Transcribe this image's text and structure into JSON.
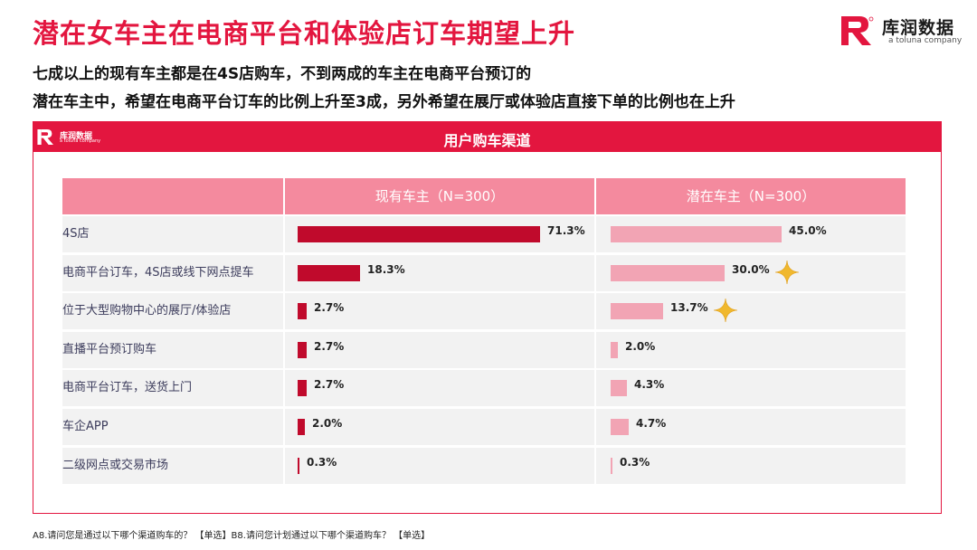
{
  "title": "潜在女车主在电商平台和体验店订车期望上升",
  "subtitle_lines": [
    "七成以上的现有车主都是在4S店购车，不到两成的车主在电商平台预订的",
    "潜在车主中，希望在电商平台订车的比例上升至3成，另外希望在展厅或体验店直接下单的比例也在上升"
  ],
  "brand": {
    "name": "库润数据",
    "sub": "a toluna company",
    "colors": {
      "primary": "#e3163f",
      "bar_current": "#c00a2c",
      "bar_potential": "#f2a4b4",
      "header_pink": "#f48a9e"
    }
  },
  "panel": {
    "title": "用户购车渠道"
  },
  "footnote": "A8.请问您是通过以下哪个渠道购车的？ 【单选】B8.请问您计划通过以下哪个渠道购车？ 【单选】",
  "chart_data": {
    "type": "bar",
    "orientation": "horizontal",
    "title": "用户购车渠道",
    "categories": [
      "4S店",
      "电商平台订车，4S店或线下网点提车",
      "位于大型购物中心的展厅/体验店",
      "直播平台预订购车",
      "电商平台订车，送货上门",
      "车企APP",
      "二级网点或交易市场"
    ],
    "series": [
      {
        "name": "现有车主（N=300）",
        "values": [
          71.3,
          18.3,
          2.7,
          2.7,
          2.7,
          2.0,
          0.3
        ],
        "labels": [
          "71.3%",
          "18.3%",
          "2.7%",
          "2.7%",
          "2.7%",
          "2.0%",
          "0.3%"
        ]
      },
      {
        "name": "潜在车主（N=300）",
        "values": [
          45.0,
          30.0,
          13.7,
          2.0,
          4.3,
          4.7,
          0.3
        ],
        "labels": [
          "45.0%",
          "30.0%",
          "13.7%",
          "2.0%",
          "4.3%",
          "4.7%",
          "0.3%"
        ]
      }
    ],
    "unit": "%",
    "highlighted": [
      {
        "series": 1,
        "category": 1
      },
      {
        "series": 1,
        "category": 2
      }
    ]
  }
}
